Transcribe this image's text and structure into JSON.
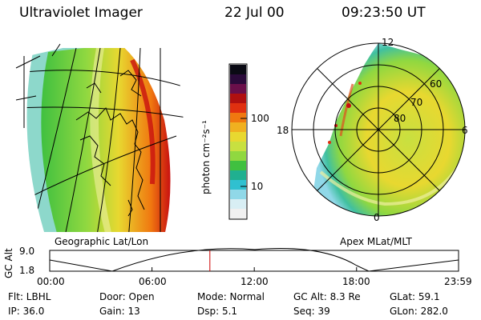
{
  "header": {
    "title": "Ultraviolet Imager",
    "date": "22 Jul 00",
    "time": "09:23:50 UT"
  },
  "left_panel": {
    "caption": "Geographic Lat/Lon"
  },
  "colorbar": {
    "unit_label": "photon cm⁻²s⁻¹",
    "ticks": [
      "100",
      "10"
    ],
    "colors": [
      "#0a0a14",
      "#2a0a3a",
      "#6a0f4a",
      "#b01010",
      "#e03010",
      "#f07810",
      "#f0b020",
      "#e8d830",
      "#c8e040",
      "#90d840",
      "#40c040",
      "#20b090",
      "#30c0d0",
      "#90d8e8",
      "#d8eef4",
      "#f0f0f0"
    ]
  },
  "right_panel": {
    "caption": "Apex MLat/MLT",
    "mlt_labels": {
      "top": "12",
      "left": "18",
      "right": "6",
      "bottom": "0"
    },
    "lat_labels": [
      "60",
      "70",
      "80"
    ]
  },
  "altitude_plot": {
    "ylabel": "GC Alt",
    "yticks": [
      "9.0",
      "1.8"
    ],
    "xticks": [
      "00:00",
      "06:00",
      "12:00",
      "18:00",
      "23:59"
    ],
    "marker_hour": 9.397,
    "marker_color": "#cc0000"
  },
  "info": {
    "row1": [
      {
        "name": "flt",
        "text": "Flt: LBHL"
      },
      {
        "name": "door",
        "text": "Door: Open"
      },
      {
        "name": "mode",
        "text": "Mode: Normal"
      },
      {
        "name": "gc-alt",
        "text": "GC Alt: 8.3 Re"
      },
      {
        "name": "glat",
        "text": "GLat:  59.1"
      }
    ],
    "row2": [
      {
        "name": "ip",
        "text": "IP: 36.0"
      },
      {
        "name": "gain",
        "text": "Gain: 13"
      },
      {
        "name": "dsp",
        "text": "Dsp:    5.1"
      },
      {
        "name": "seq",
        "text": "Seq: 39"
      },
      {
        "name": "glon",
        "text": "GLon: 282.0"
      }
    ]
  }
}
